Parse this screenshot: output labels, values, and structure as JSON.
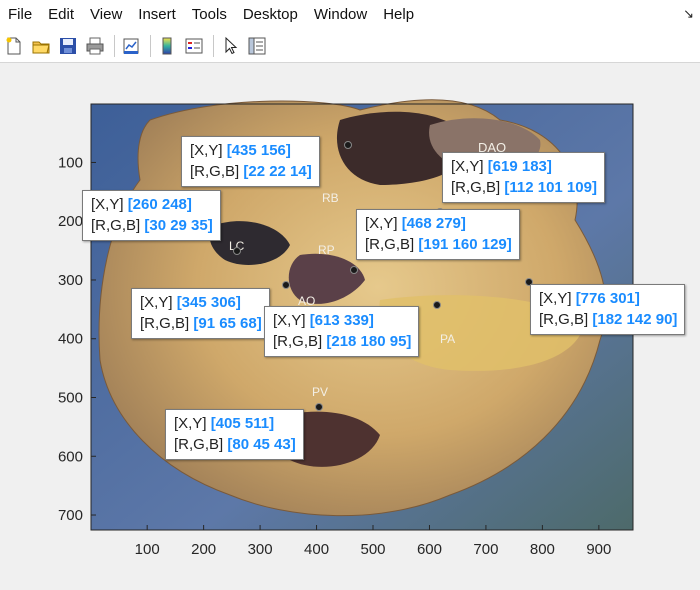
{
  "menubar": {
    "items": [
      "File",
      "Edit",
      "View",
      "Insert",
      "Tools",
      "Desktop",
      "Window",
      "Help"
    ]
  },
  "toolbar": {
    "icons": [
      "new-figure-icon",
      "open-file-icon",
      "save-icon",
      "print-icon",
      "link-plot-icon",
      "insert-colorbar-icon",
      "insert-legend-icon",
      "select-arrow-icon",
      "property-inspector-icon"
    ]
  },
  "axes": {
    "xticks": [
      "100",
      "200",
      "300",
      "400",
      "500",
      "600",
      "700",
      "800",
      "900"
    ],
    "yticks": [
      "100",
      "200",
      "300",
      "400",
      "500",
      "600",
      "700"
    ]
  },
  "image_labels": [
    "DAO",
    "RB",
    "RP",
    "AO",
    "PA",
    "PV",
    "LC"
  ],
  "datatips": [
    {
      "xy_label": "[X,Y]",
      "xy": "[435 156]",
      "rgb_label": "[R,G,B]",
      "rgb": "[22 22 14]"
    },
    {
      "xy_label": "[X,Y]",
      "xy": "[619 183]",
      "rgb_label": "[R,G,B]",
      "rgb": "[112 101 109]"
    },
    {
      "xy_label": "[X,Y]",
      "xy": "[260 248]",
      "rgb_label": "[R,G,B]",
      "rgb": "[30 29 35]"
    },
    {
      "xy_label": "[X,Y]",
      "xy": "[468 279]",
      "rgb_label": "[R,G,B]",
      "rgb": "[191 160 129]"
    },
    {
      "xy_label": "[X,Y]",
      "xy": "[345 306]",
      "rgb_label": "[R,G,B]",
      "rgb": "[91 65 68]"
    },
    {
      "xy_label": "[X,Y]",
      "xy": "[776 301]",
      "rgb_label": "[R,G,B]",
      "rgb": "[182 142 90]"
    },
    {
      "xy_label": "[X,Y]",
      "xy": "[613 339]",
      "rgb_label": "[R,G,B]",
      "rgb": "[218 180 95]"
    },
    {
      "xy_label": "[X,Y]",
      "xy": "[405 511]",
      "rgb_label": "[R,G,B]",
      "rgb": "[80 45 43]"
    }
  ],
  "colors": {
    "accent": "#1a8cff",
    "background": "#f0f0f0",
    "image_frame": "#4a6fa0"
  }
}
